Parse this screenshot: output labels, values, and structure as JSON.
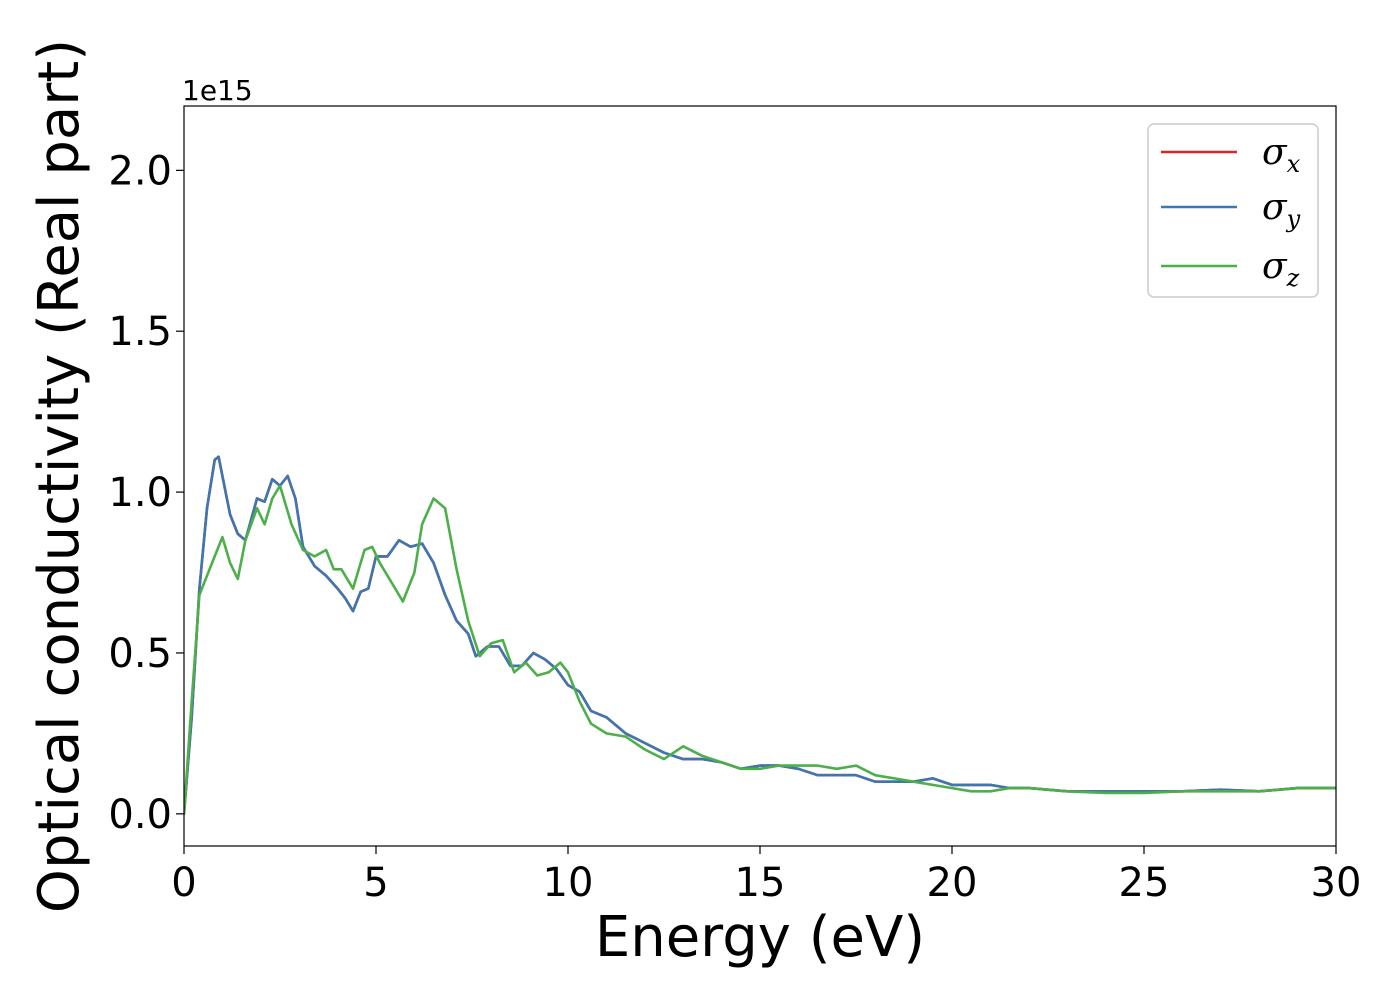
{
  "chart_data": {
    "type": "line",
    "xlabel": "Energy (eV)",
    "ylabel": "Optical conductivity (Real part)",
    "y_offset_text": "1e15",
    "xlim": [
      0,
      30
    ],
    "ylim": [
      -0.1,
      2.2
    ],
    "x_ticks": [
      0,
      5,
      10,
      15,
      20,
      25,
      30
    ],
    "x_tick_labels": [
      "0",
      "5",
      "10",
      "15",
      "20",
      "25",
      "30"
    ],
    "y_ticks": [
      0.0,
      0.5,
      1.0,
      1.5,
      2.0
    ],
    "y_tick_labels": [
      "0.0",
      "0.5",
      "1.0",
      "1.5",
      "2.0"
    ],
    "grid": false,
    "legend": {
      "position": "top-right",
      "entries": [
        {
          "symbol": "σ",
          "sub": "x",
          "color": "#d62728"
        },
        {
          "symbol": "σ",
          "sub": "y",
          "color": "#3e76b0"
        },
        {
          "symbol": "σ",
          "sub": "z",
          "color": "#4daf4a"
        }
      ]
    },
    "series": [
      {
        "key": "sigma_x",
        "color": "#d62728",
        "x": [
          0,
          0.2,
          0.4,
          0.6,
          0.8,
          0.9,
          1.0,
          1.2,
          1.4,
          1.6,
          1.9,
          2.1,
          2.3,
          2.5,
          2.7,
          2.9,
          3.1,
          3.4,
          3.7,
          4.0,
          4.2,
          4.4,
          4.6,
          4.8,
          5.0,
          5.3,
          5.6,
          5.9,
          6.2,
          6.5,
          6.8,
          7.1,
          7.4,
          7.6,
          7.9,
          8.2,
          8.5,
          8.8,
          9.1,
          9.4,
          9.7,
          10.0,
          10.3,
          10.6,
          11.0,
          11.5,
          12.0,
          12.5,
          13.0,
          13.5,
          14.0,
          14.5,
          15.0,
          15.5,
          16.0,
          16.5,
          17.0,
          17.5,
          18.0,
          18.5,
          19.0,
          19.5,
          20.0,
          20.5,
          21.0,
          21.5,
          22.0,
          23.0,
          24.0,
          25.0,
          26.0,
          27.0,
          28.0,
          29.0,
          30.0
        ],
        "values": [
          0.0,
          0.3,
          0.7,
          0.95,
          1.1,
          1.11,
          1.05,
          0.93,
          0.87,
          0.85,
          0.98,
          0.97,
          1.04,
          1.02,
          1.05,
          0.98,
          0.83,
          0.77,
          0.74,
          0.7,
          0.67,
          0.63,
          0.69,
          0.7,
          0.8,
          0.8,
          0.85,
          0.83,
          0.84,
          0.78,
          0.68,
          0.6,
          0.56,
          0.49,
          0.52,
          0.52,
          0.46,
          0.46,
          0.5,
          0.48,
          0.45,
          0.4,
          0.38,
          0.32,
          0.3,
          0.25,
          0.22,
          0.19,
          0.17,
          0.17,
          0.16,
          0.14,
          0.15,
          0.15,
          0.14,
          0.12,
          0.12,
          0.12,
          0.1,
          0.1,
          0.1,
          0.11,
          0.09,
          0.09,
          0.09,
          0.08,
          0.08,
          0.07,
          0.07,
          0.07,
          0.07,
          0.075,
          0.07,
          0.08,
          0.08
        ]
      },
      {
        "key": "sigma_y",
        "color": "#3e76b0",
        "x": [
          0,
          0.2,
          0.4,
          0.6,
          0.8,
          0.9,
          1.0,
          1.2,
          1.4,
          1.6,
          1.9,
          2.1,
          2.3,
          2.5,
          2.7,
          2.9,
          3.1,
          3.4,
          3.7,
          4.0,
          4.2,
          4.4,
          4.6,
          4.8,
          5.0,
          5.3,
          5.6,
          5.9,
          6.2,
          6.5,
          6.8,
          7.1,
          7.4,
          7.6,
          7.9,
          8.2,
          8.5,
          8.8,
          9.1,
          9.4,
          9.7,
          10.0,
          10.3,
          10.6,
          11.0,
          11.5,
          12.0,
          12.5,
          13.0,
          13.5,
          14.0,
          14.5,
          15.0,
          15.5,
          16.0,
          16.5,
          17.0,
          17.5,
          18.0,
          18.5,
          19.0,
          19.5,
          20.0,
          20.5,
          21.0,
          21.5,
          22.0,
          23.0,
          24.0,
          25.0,
          26.0,
          27.0,
          28.0,
          29.0,
          30.0
        ],
        "values": [
          0.0,
          0.3,
          0.7,
          0.95,
          1.1,
          1.11,
          1.05,
          0.93,
          0.87,
          0.85,
          0.98,
          0.97,
          1.04,
          1.02,
          1.05,
          0.98,
          0.83,
          0.77,
          0.74,
          0.7,
          0.67,
          0.63,
          0.69,
          0.7,
          0.8,
          0.8,
          0.85,
          0.83,
          0.84,
          0.78,
          0.68,
          0.6,
          0.56,
          0.49,
          0.52,
          0.52,
          0.46,
          0.46,
          0.5,
          0.48,
          0.45,
          0.4,
          0.38,
          0.32,
          0.3,
          0.25,
          0.22,
          0.19,
          0.17,
          0.17,
          0.16,
          0.14,
          0.15,
          0.15,
          0.14,
          0.12,
          0.12,
          0.12,
          0.1,
          0.1,
          0.1,
          0.11,
          0.09,
          0.09,
          0.09,
          0.08,
          0.08,
          0.07,
          0.07,
          0.07,
          0.07,
          0.075,
          0.07,
          0.08,
          0.08
        ]
      },
      {
        "key": "sigma_z",
        "color": "#4daf4a",
        "x": [
          0,
          0.2,
          0.4,
          0.6,
          0.8,
          1.0,
          1.2,
          1.4,
          1.6,
          1.9,
          2.1,
          2.3,
          2.5,
          2.8,
          3.1,
          3.4,
          3.7,
          3.9,
          4.1,
          4.4,
          4.7,
          4.9,
          5.1,
          5.4,
          5.7,
          6.0,
          6.2,
          6.5,
          6.8,
          7.1,
          7.4,
          7.7,
          8.0,
          8.3,
          8.6,
          8.9,
          9.2,
          9.5,
          9.8,
          10.0,
          10.3,
          10.6,
          11.0,
          11.5,
          12.0,
          12.5,
          13.0,
          13.5,
          14.0,
          14.5,
          15.0,
          15.5,
          16.0,
          16.5,
          17.0,
          17.5,
          18.0,
          18.5,
          19.0,
          19.5,
          20.0,
          20.5,
          21.0,
          21.5,
          22.0,
          23.0,
          24.0,
          25.0,
          26.0,
          27.0,
          28.0,
          29.0,
          30.0
        ],
        "values": [
          0.0,
          0.35,
          0.68,
          0.74,
          0.8,
          0.86,
          0.78,
          0.73,
          0.85,
          0.95,
          0.9,
          0.98,
          1.02,
          0.9,
          0.82,
          0.8,
          0.82,
          0.76,
          0.76,
          0.7,
          0.82,
          0.83,
          0.78,
          0.72,
          0.66,
          0.75,
          0.9,
          0.98,
          0.95,
          0.76,
          0.6,
          0.49,
          0.53,
          0.54,
          0.44,
          0.47,
          0.43,
          0.44,
          0.47,
          0.44,
          0.35,
          0.28,
          0.25,
          0.24,
          0.2,
          0.17,
          0.21,
          0.18,
          0.16,
          0.14,
          0.14,
          0.15,
          0.15,
          0.15,
          0.14,
          0.15,
          0.12,
          0.11,
          0.1,
          0.09,
          0.08,
          0.07,
          0.07,
          0.08,
          0.08,
          0.07,
          0.065,
          0.065,
          0.07,
          0.07,
          0.07,
          0.08,
          0.08
        ]
      }
    ]
  }
}
